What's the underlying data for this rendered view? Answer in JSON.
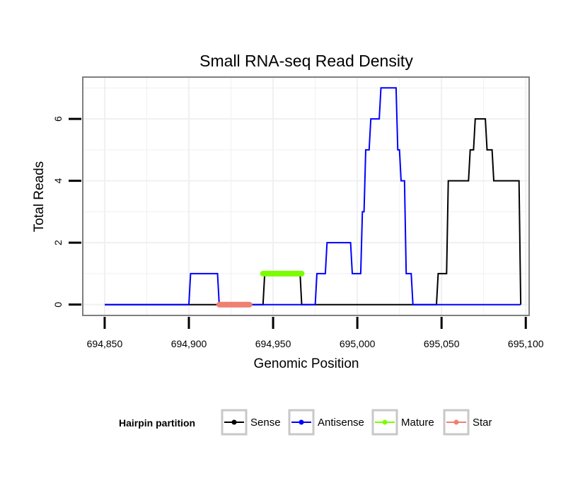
{
  "chart_data": {
    "type": "line",
    "title": "Small RNA-seq Read Density",
    "xlabel": "Genomic Position",
    "ylabel": "Total Reads",
    "xlim": [
      694837,
      695102
    ],
    "ylim": [
      -0.35,
      7.35
    ],
    "x_ticks": [
      694850,
      694900,
      694950,
      695000,
      695050,
      695100
    ],
    "x_tick_labels": [
      "694,850",
      "694,900",
      "694,950",
      "695,000",
      "695,050",
      "695,100"
    ],
    "y_ticks": [
      0,
      2,
      4,
      6
    ],
    "y_tick_labels": [
      "0",
      "2",
      "4",
      "6"
    ],
    "grid": true,
    "legend": {
      "title": "Hairpin partition",
      "position": "bottom",
      "entries": [
        "Sense",
        "Antisense",
        "Mature",
        "Star"
      ]
    },
    "colors": {
      "Sense": "#000000",
      "Antisense": "#0000ff",
      "Mature": "#7cfc00",
      "Star": "#f08070",
      "panel_border": "#7f7f7f",
      "grid": "#f0f0f0",
      "legend_key_border": "#c8c8c8"
    },
    "series": [
      {
        "name": "Sense",
        "x": [
          694850,
          694944,
          694945,
          694966,
          694967,
          694975,
          694976,
          695047,
          695048,
          695053,
          695054,
          695066,
          695067,
          695069,
          695070,
          695076,
          695077,
          695080,
          695081,
          695089,
          695090,
          695096,
          695097
        ],
        "y": [
          0,
          0,
          1,
          1,
          0,
          0,
          0,
          0,
          1,
          1,
          4,
          4,
          5,
          5,
          6,
          6,
          5,
          5,
          4,
          4,
          4,
          4,
          0
        ]
      },
      {
        "name": "Antisense",
        "x": [
          694850,
          694900,
          694901,
          694917,
          694918,
          694966,
          694967,
          694975,
          694976,
          694978,
          694979,
          694981,
          694982,
          694990,
          694991,
          694996,
          694997,
          695002,
          695003,
          695004,
          695005,
          695007,
          695008,
          695013,
          695014,
          695019,
          695020,
          695023,
          695024,
          695025,
          695026,
          695028,
          695029,
          695032,
          695033,
          695047,
          695097
        ],
        "y": [
          0,
          0,
          1,
          1,
          0,
          0,
          0,
          0,
          1,
          1,
          1,
          1,
          2,
          2,
          2,
          2,
          1,
          1,
          3,
          3,
          5,
          5,
          6,
          6,
          7,
          7,
          7,
          7,
          5,
          5,
          4,
          4,
          1,
          1,
          0,
          0,
          0
        ]
      },
      {
        "name": "Mature",
        "x": [
          694944,
          694967
        ],
        "y": [
          1,
          1
        ]
      },
      {
        "name": "Star",
        "x": [
          694918,
          694936
        ],
        "y": [
          0,
          0
        ]
      }
    ]
  }
}
